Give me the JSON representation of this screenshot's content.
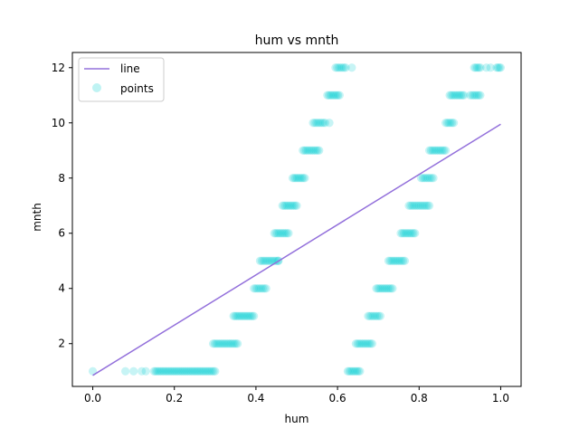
{
  "colors": {
    "line": "#9370DB",
    "points": "#00CED1",
    "axes": "#000000",
    "legend_border": "#cccccc"
  },
  "chart_data": {
    "type": "scatter",
    "title": "hum vs mnth",
    "xlabel": "hum",
    "ylabel": "mnth",
    "xlim": [
      -0.05,
      1.05
    ],
    "ylim": [
      0.45,
      12.55
    ],
    "xticks": [
      0.0,
      0.2,
      0.4,
      0.6,
      0.8,
      1.0
    ],
    "xtick_labels": [
      "0.0",
      "0.2",
      "0.4",
      "0.6",
      "0.8",
      "1.0"
    ],
    "yticks": [
      2,
      4,
      6,
      8,
      10,
      12
    ],
    "ytick_labels": [
      "2",
      "4",
      "6",
      "8",
      "10",
      "12"
    ],
    "legend": {
      "position": "top-left",
      "entries": [
        {
          "label": "line",
          "kind": "line"
        },
        {
          "label": "points",
          "kind": "marker"
        }
      ]
    },
    "line": {
      "name": "line",
      "x": [
        0.0,
        1.0
      ],
      "y": [
        0.85,
        9.95
      ]
    },
    "points": {
      "name": "points",
      "month_ranges": [
        {
          "mnth": 1,
          "hum_min": 0.15,
          "hum_max": 0.3,
          "extra": [
            0.0,
            0.08,
            0.1,
            0.12,
            0.13
          ]
        },
        {
          "mnth": 2,
          "hum_min": 0.295,
          "hum_max": 0.355,
          "extra": []
        },
        {
          "mnth": 3,
          "hum_min": 0.345,
          "hum_max": 0.395,
          "extra": []
        },
        {
          "mnth": 4,
          "hum_min": 0.395,
          "hum_max": 0.425,
          "extra": []
        },
        {
          "mnth": 5,
          "hum_min": 0.41,
          "hum_max": 0.455,
          "extra": [
            0.455
          ]
        },
        {
          "mnth": 6,
          "hum_min": 0.445,
          "hum_max": 0.48,
          "extra": []
        },
        {
          "mnth": 7,
          "hum_min": 0.465,
          "hum_max": 0.5,
          "extra": []
        },
        {
          "mnth": 8,
          "hum_min": 0.49,
          "hum_max": 0.52,
          "extra": []
        },
        {
          "mnth": 9,
          "hum_min": 0.515,
          "hum_max": 0.555,
          "extra": []
        },
        {
          "mnth": 10,
          "hum_min": 0.54,
          "hum_max": 0.57,
          "extra": [
            0.58
          ]
        },
        {
          "mnth": 11,
          "hum_min": 0.575,
          "hum_max": 0.605,
          "extra": []
        },
        {
          "mnth": 12,
          "hum_min": 0.595,
          "hum_max": 0.62,
          "extra": [
            0.635
          ]
        },
        {
          "mnth": 1,
          "hum_min": 0.625,
          "hum_max": 0.655,
          "extra": []
        },
        {
          "mnth": 2,
          "hum_min": 0.645,
          "hum_max": 0.685,
          "extra": []
        },
        {
          "mnth": 3,
          "hum_min": 0.675,
          "hum_max": 0.705,
          "extra": []
        },
        {
          "mnth": 4,
          "hum_min": 0.695,
          "hum_max": 0.735,
          "extra": []
        },
        {
          "mnth": 5,
          "hum_min": 0.725,
          "hum_max": 0.765,
          "extra": []
        },
        {
          "mnth": 6,
          "hum_min": 0.755,
          "hum_max": 0.79,
          "extra": []
        },
        {
          "mnth": 7,
          "hum_min": 0.775,
          "hum_max": 0.825,
          "extra": []
        },
        {
          "mnth": 8,
          "hum_min": 0.805,
          "hum_max": 0.835,
          "extra": []
        },
        {
          "mnth": 9,
          "hum_min": 0.825,
          "hum_max": 0.865,
          "extra": []
        },
        {
          "mnth": 10,
          "hum_min": 0.865,
          "hum_max": 0.885,
          "extra": []
        },
        {
          "mnth": 11,
          "hum_min": 0.875,
          "hum_max": 0.91,
          "extra": [
            0.925
          ]
        },
        {
          "mnth": 11,
          "hum_min": 0.93,
          "hum_max": 0.95,
          "extra": []
        },
        {
          "mnth": 12,
          "hum_min": 0.935,
          "hum_max": 0.95,
          "extra": [
            0.965,
            0.975
          ]
        },
        {
          "mnth": 12,
          "hum_min": 0.99,
          "hum_max": 1.0,
          "extra": []
        }
      ]
    }
  }
}
